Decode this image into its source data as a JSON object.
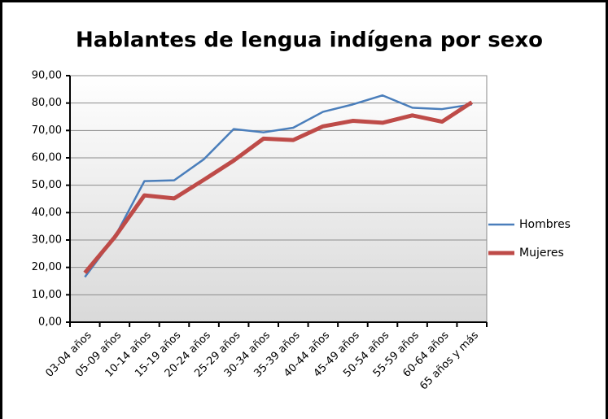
{
  "chart_data": {
    "type": "line",
    "title": "Hablantes de lengua indígena por sexo",
    "categories": [
      "03-04 años",
      "05-09 años",
      "10-14 años",
      "15-19 años",
      "20-24 años",
      "25-29 años",
      "30-34 años",
      "35-39 años",
      "40-44 años",
      "45-49 años",
      "50-54 años",
      "55-59 años",
      "60-64 años",
      "65 años y más"
    ],
    "series": [
      {
        "name": "Hombres",
        "color": "#4a7ebb",
        "values": [
          16.5,
          31,
          51.5,
          51.8,
          59.5,
          70.5,
          69.3,
          71,
          76.8,
          79.5,
          82.8,
          78.3,
          77.8,
          79.5
        ]
      },
      {
        "name": "Mujeres",
        "color": "#be4b48",
        "values": [
          18,
          31,
          46.3,
          45.2,
          52,
          59,
          67,
          66.5,
          71.5,
          73.5,
          72.8,
          75.5,
          73.2,
          80.3
        ]
      }
    ],
    "ylim": [
      0,
      90
    ],
    "yticks": [
      {
        "value": 0,
        "label": "0,00"
      },
      {
        "value": 10,
        "label": "10,00"
      },
      {
        "value": 20,
        "label": "20,00"
      },
      {
        "value": 30,
        "label": "30,00"
      },
      {
        "value": 40,
        "label": "40,00"
      },
      {
        "value": 50,
        "label": "50,00"
      },
      {
        "value": 60,
        "label": "60,00"
      },
      {
        "value": 70,
        "label": "70,00"
      },
      {
        "value": 80,
        "label": "80,00"
      },
      {
        "value": 90,
        "label": "90,00"
      }
    ],
    "grid": true,
    "legend": "right"
  }
}
